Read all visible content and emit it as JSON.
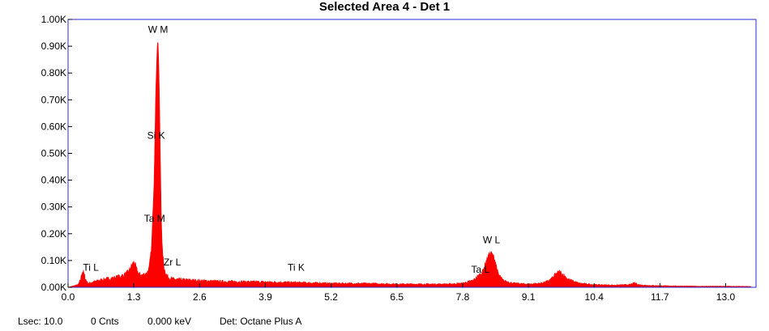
{
  "chart_data": {
    "type": "area",
    "title": "Selected Area 4 - Det 1",
    "xlabel": "",
    "ylabel": "",
    "x_unit": "keV",
    "xlim": [
      0.0,
      13.6
    ],
    "ylim": [
      0,
      1000
    ],
    "x_ticks": [
      "0.0",
      "1.3",
      "2.6",
      "3.9",
      "5.2",
      "6.5",
      "7.8",
      "9.1",
      "10.4",
      "11.7",
      "13.0"
    ],
    "x_tick_values": [
      0.0,
      1.3,
      2.6,
      3.9,
      5.2,
      6.5,
      7.8,
      9.1,
      10.4,
      11.7,
      13.0
    ],
    "y_ticks": [
      "0.00K",
      "0.10K",
      "0.20K",
      "0.30K",
      "0.40K",
      "0.50K",
      "0.60K",
      "0.70K",
      "0.80K",
      "0.90K",
      "1.00K"
    ],
    "y_tick_values": [
      0,
      100,
      200,
      300,
      400,
      500,
      600,
      700,
      800,
      900,
      1000
    ],
    "grid": false,
    "series": [
      {
        "color": "#ff0000",
        "x": [
          0.0,
          0.1,
          0.2,
          0.25,
          0.27,
          0.3,
          0.33,
          0.36,
          0.4,
          0.5,
          0.7,
          0.9,
          1.1,
          1.2,
          1.25,
          1.3,
          1.33,
          1.36,
          1.4,
          1.45,
          1.5,
          1.55,
          1.6,
          1.65,
          1.7,
          1.73,
          1.76,
          1.78,
          1.8,
          1.82,
          1.84,
          1.86,
          1.9,
          1.95,
          2.0,
          2.1,
          2.3,
          2.6,
          3.0,
          3.9,
          4.5,
          5.2,
          6.0,
          6.5,
          7.0,
          7.5,
          7.8,
          8.0,
          8.1,
          8.2,
          8.25,
          8.3,
          8.35,
          8.4,
          8.45,
          8.5,
          8.6,
          8.8,
          9.1,
          9.3,
          9.45,
          9.55,
          9.65,
          9.72,
          9.8,
          9.9,
          10.1,
          10.4,
          10.8,
          11.1,
          11.2,
          11.3,
          11.5,
          11.7,
          12.0,
          12.5,
          13.0,
          13.5
        ],
        "y": [
          0,
          5,
          10,
          30,
          55,
          60,
          40,
          25,
          15,
          20,
          30,
          35,
          45,
          60,
          80,
          95,
          85,
          65,
          50,
          45,
          48,
          52,
          70,
          150,
          400,
          700,
          900,
          920,
          780,
          540,
          300,
          150,
          70,
          45,
          35,
          30,
          28,
          25,
          22,
          20,
          18,
          15,
          14,
          12,
          12,
          12,
          15,
          25,
          40,
          60,
          90,
          115,
          130,
          120,
          95,
          50,
          25,
          15,
          12,
          14,
          20,
          30,
          50,
          58,
          45,
          28,
          15,
          10,
          8,
          10,
          16,
          9,
          7,
          6,
          5,
          4,
          4,
          3
        ]
      }
    ],
    "annotations": [
      {
        "label": "W  M",
        "x": 1.78,
        "y": 950
      },
      {
        "label": "Si K",
        "x": 1.74,
        "y": 555
      },
      {
        "label": "Ta M",
        "x": 1.71,
        "y": 245
      },
      {
        "label": "Ti L",
        "x": 0.45,
        "y": 62
      },
      {
        "label": "Zr L",
        "x": 2.06,
        "y": 82
      },
      {
        "label": "Ti K",
        "x": 4.51,
        "y": 62
      },
      {
        "label": "W  L",
        "x": 8.37,
        "y": 165
      },
      {
        "label": "Ta L",
        "x": 8.15,
        "y": 55
      }
    ]
  },
  "status_bar": {
    "lsec": "Lsec: 10.0",
    "counts": "0 Cnts",
    "energy": "0.000 keV",
    "detector": "Det: Octane Plus A"
  }
}
